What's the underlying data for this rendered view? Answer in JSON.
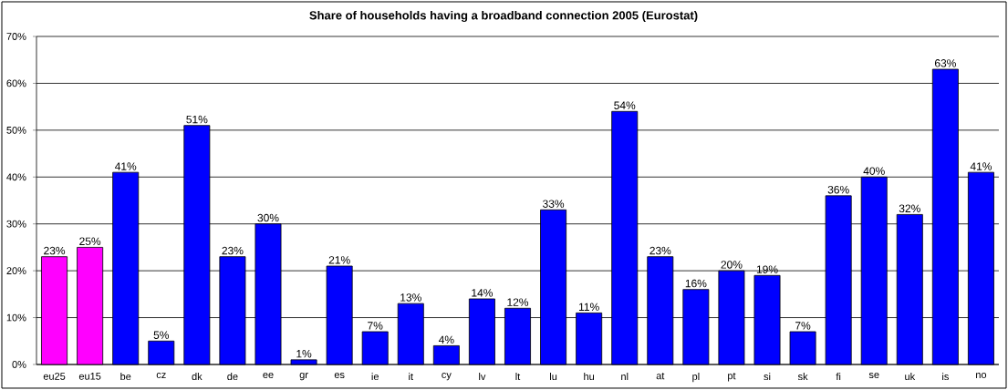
{
  "chart_data": {
    "type": "bar",
    "title": "Share of households having a broadband connection 2005 (Eurostat)",
    "categories": [
      "eu25",
      "eu15",
      "be",
      "cz",
      "dk",
      "de",
      "ee",
      "gr",
      "es",
      "ie",
      "it",
      "cy",
      "lv",
      "lt",
      "lu",
      "hu",
      "nl",
      "at",
      "pl",
      "pt",
      "si",
      "sk",
      "fi",
      "se",
      "uk",
      "is",
      "no"
    ],
    "values": [
      23,
      25,
      41,
      5,
      51,
      23,
      30,
      1,
      21,
      7,
      13,
      4,
      14,
      12,
      33,
      11,
      54,
      23,
      16,
      20,
      19,
      7,
      36,
      40,
      32,
      63,
      41
    ],
    "value_labels": [
      "23%",
      "25%",
      "41%",
      "5%",
      "51%",
      "23%",
      "30%",
      "1%",
      "21%",
      "7%",
      "13%",
      "4%",
      "14%",
      "12%",
      "33%",
      "11%",
      "54%",
      "23%",
      "16%",
      "20%",
      "19%",
      "7%",
      "36%",
      "40%",
      "32%",
      "63%",
      "41%"
    ],
    "colors": [
      "#ff00ff",
      "#ff00ff",
      "#0000ff",
      "#0000ff",
      "#0000ff",
      "#0000ff",
      "#0000ff",
      "#0000ff",
      "#0000ff",
      "#0000ff",
      "#0000ff",
      "#0000ff",
      "#0000ff",
      "#0000ff",
      "#0000ff",
      "#0000ff",
      "#0000ff",
      "#0000ff",
      "#0000ff",
      "#0000ff",
      "#0000ff",
      "#0000ff",
      "#0000ff",
      "#0000ff",
      "#0000ff",
      "#0000ff",
      "#0000ff"
    ],
    "ylim": [
      0,
      70
    ],
    "yticks": [
      {
        "value": 0,
        "label": "0%"
      },
      {
        "value": 10,
        "label": "10%"
      },
      {
        "value": 20,
        "label": "20%"
      },
      {
        "value": 30,
        "label": "30%"
      },
      {
        "value": 40,
        "label": "40%"
      },
      {
        "value": 50,
        "label": "50%"
      },
      {
        "value": 60,
        "label": "60%"
      },
      {
        "value": 70,
        "label": "70%"
      }
    ],
    "grid": "y"
  }
}
